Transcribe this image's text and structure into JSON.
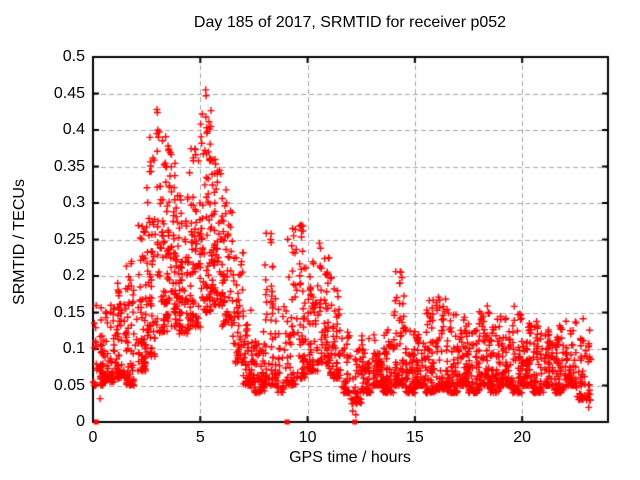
{
  "chart_data": {
    "type": "scatter",
    "title": "Day 185 of 2017, SRMTID for receiver p052",
    "xlabel": "GPS time / hours",
    "ylabel": "SRMTID / TECUs",
    "xlim": [
      0,
      24
    ],
    "ylim": [
      0,
      0.5
    ],
    "x_ticks": [
      0,
      5,
      10,
      15,
      20
    ],
    "x_tick_labels": [
      "0",
      "5",
      "10",
      "15",
      "20"
    ],
    "y_ticks": [
      0,
      0.05,
      0.1,
      0.15,
      0.2,
      0.25,
      0.3,
      0.35,
      0.4,
      0.45,
      0.5
    ],
    "y_tick_labels": [
      "0",
      "0.05",
      "0.1",
      "0.15",
      "0.2",
      "0.25",
      "0.3",
      "0.35",
      "0.4",
      "0.45",
      "0.5"
    ],
    "legend": null,
    "grid": {
      "visible": true,
      "style": "dashed",
      "color": "#a8a8a8"
    },
    "border_color": "#000000",
    "marker": {
      "shape": "plus",
      "color": "#ff0000",
      "size": 7
    },
    "zero_markers": {
      "shape": "filled-square",
      "color": "#ff0000",
      "size": 5,
      "x": [
        0.15,
        9.05,
        12.2
      ],
      "y": 0
    },
    "seed": 20170185,
    "density_bins_format": [
      "x_start_hr",
      "x_end_hr",
      "y_min_TECU",
      "y_max_TECU",
      "point_count",
      "low_bias_exponent"
    ],
    "density_bins": [
      [
        0.0,
        0.5,
        0.05,
        0.16,
        50,
        2.0
      ],
      [
        0.5,
        1.0,
        0.055,
        0.16,
        55,
        2.0
      ],
      [
        1.0,
        1.5,
        0.06,
        0.19,
        55,
        2.0
      ],
      [
        1.5,
        2.0,
        0.05,
        0.225,
        55,
        2.0
      ],
      [
        2.0,
        2.5,
        0.07,
        0.27,
        60,
        1.9
      ],
      [
        2.5,
        3.0,
        0.09,
        0.4,
        65,
        1.8
      ],
      [
        3.0,
        3.5,
        0.12,
        0.4,
        70,
        1.7
      ],
      [
        3.5,
        4.0,
        0.13,
        0.38,
        70,
        1.7
      ],
      [
        4.0,
        4.5,
        0.12,
        0.31,
        65,
        1.7
      ],
      [
        4.5,
        5.0,
        0.13,
        0.375,
        65,
        1.7
      ],
      [
        5.0,
        5.5,
        0.15,
        0.44,
        70,
        1.7
      ],
      [
        5.5,
        6.0,
        0.16,
        0.36,
        60,
        1.7
      ],
      [
        6.0,
        6.5,
        0.13,
        0.31,
        55,
        1.8
      ],
      [
        6.5,
        7.0,
        0.08,
        0.24,
        50,
        2.0
      ],
      [
        7.0,
        7.5,
        0.05,
        0.16,
        55,
        2.2
      ],
      [
        7.5,
        8.0,
        0.04,
        0.13,
        55,
        2.2
      ],
      [
        8.0,
        8.5,
        0.05,
        0.26,
        50,
        2.4
      ],
      [
        8.5,
        9.0,
        0.04,
        0.16,
        40,
        2.2
      ],
      [
        9.0,
        9.5,
        0.05,
        0.265,
        45,
        2.3
      ],
      [
        9.5,
        10.0,
        0.06,
        0.27,
        55,
        2.2
      ],
      [
        10.0,
        10.5,
        0.07,
        0.22,
        55,
        2.0
      ],
      [
        10.5,
        11.0,
        0.08,
        0.245,
        55,
        2.0
      ],
      [
        11.0,
        11.5,
        0.06,
        0.2,
        50,
        2.2
      ],
      [
        11.5,
        12.0,
        0.04,
        0.13,
        40,
        2.2
      ],
      [
        12.0,
        12.5,
        0.025,
        0.1,
        35,
        2.0
      ],
      [
        12.5,
        13.0,
        0.04,
        0.12,
        55,
        2.2
      ],
      [
        13.0,
        13.5,
        0.05,
        0.125,
        60,
        2.2
      ],
      [
        13.5,
        14.0,
        0.04,
        0.13,
        60,
        2.2
      ],
      [
        14.0,
        14.5,
        0.05,
        0.21,
        60,
        2.4
      ],
      [
        14.5,
        15.0,
        0.04,
        0.13,
        60,
        2.2
      ],
      [
        15.0,
        15.5,
        0.05,
        0.12,
        60,
        2.2
      ],
      [
        15.5,
        16.0,
        0.04,
        0.17,
        60,
        2.4
      ],
      [
        16.0,
        16.5,
        0.045,
        0.17,
        60,
        2.3
      ],
      [
        16.5,
        17.0,
        0.04,
        0.155,
        60,
        2.2
      ],
      [
        17.0,
        17.5,
        0.05,
        0.15,
        60,
        2.2
      ],
      [
        17.5,
        18.0,
        0.04,
        0.145,
        60,
        2.2
      ],
      [
        18.0,
        18.5,
        0.05,
        0.16,
        60,
        2.2
      ],
      [
        18.5,
        19.0,
        0.04,
        0.15,
        60,
        2.2
      ],
      [
        19.0,
        19.5,
        0.05,
        0.145,
        55,
        2.2
      ],
      [
        19.5,
        20.0,
        0.04,
        0.16,
        55,
        2.2
      ],
      [
        20.0,
        20.5,
        0.05,
        0.155,
        55,
        2.2
      ],
      [
        20.5,
        21.0,
        0.04,
        0.14,
        55,
        2.2
      ],
      [
        21.0,
        21.5,
        0.05,
        0.13,
        55,
        2.2
      ],
      [
        21.5,
        22.0,
        0.04,
        0.135,
        55,
        2.2
      ],
      [
        22.0,
        22.5,
        0.05,
        0.14,
        55,
        2.2
      ],
      [
        22.5,
        23.2,
        0.03,
        0.145,
        60,
        2.2
      ]
    ],
    "peak_points": [
      [
        5.25,
        0.455
      ],
      [
        5.27,
        0.447
      ],
      [
        5.3,
        0.403
      ],
      [
        5.33,
        0.398
      ],
      [
        2.98,
        0.428
      ],
      [
        3.0,
        0.424
      ],
      [
        3.02,
        0.4
      ],
      [
        2.97,
        0.395
      ],
      [
        3.05,
        0.39
      ],
      [
        4.75,
        0.374
      ],
      [
        4.78,
        0.366
      ],
      [
        3.5,
        0.378
      ],
      [
        3.53,
        0.372
      ],
      [
        5.38,
        0.37
      ],
      [
        5.5,
        0.358
      ],
      [
        5.9,
        0.345
      ],
      [
        5.95,
        0.34
      ],
      [
        6.2,
        0.318
      ],
      [
        6.22,
        0.3
      ],
      [
        4.05,
        0.31
      ],
      [
        2.2,
        0.252
      ],
      [
        2.5,
        0.267
      ],
      [
        1.8,
        0.22
      ],
      [
        1.15,
        0.19
      ],
      [
        8.3,
        0.258
      ],
      [
        8.28,
        0.25
      ],
      [
        9.3,
        0.265
      ],
      [
        9.35,
        0.255
      ],
      [
        9.7,
        0.27
      ],
      [
        9.72,
        0.262
      ],
      [
        10.55,
        0.245
      ],
      [
        10.6,
        0.238
      ],
      [
        11.1,
        0.198
      ],
      [
        14.35,
        0.205
      ],
      [
        14.4,
        0.198
      ],
      [
        14.3,
        0.19
      ],
      [
        15.85,
        0.167
      ],
      [
        16.1,
        0.171
      ],
      [
        7.0,
        0.232
      ],
      [
        0.33,
        0.032
      ],
      [
        12.1,
        0.015
      ],
      [
        12.25,
        0.01
      ],
      [
        23.1,
        0.02
      ]
    ]
  }
}
